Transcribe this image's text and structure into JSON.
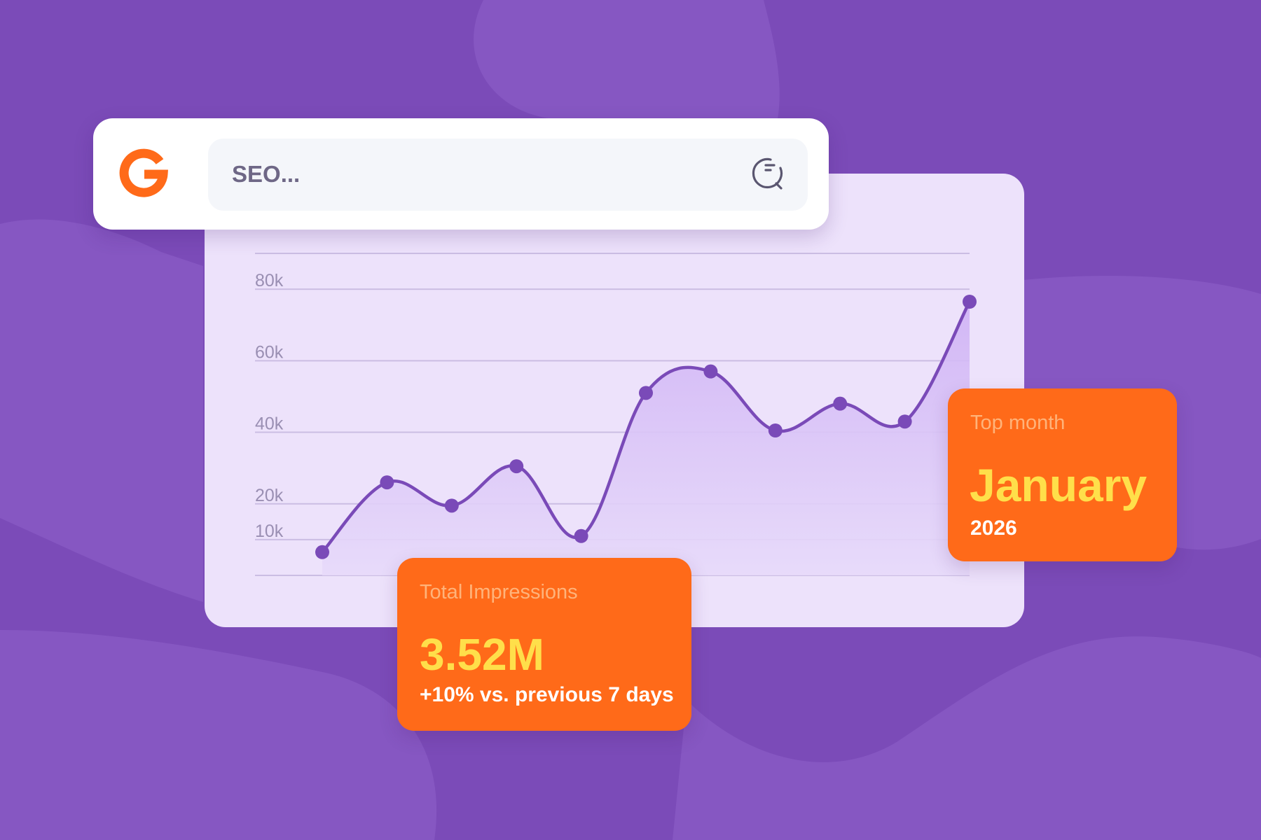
{
  "theme": {
    "background": "#7b4bb8",
    "card_background": "#ede2fb",
    "line_color": "#7a4ab8",
    "accent_orange": "#ff6a19",
    "value_yellow": "#ffdf4a",
    "logo_color": "#ff6a19"
  },
  "logo": {
    "icon": "g-logo-icon"
  },
  "search": {
    "value": "SEO...",
    "button_icon": "search-loading-icon"
  },
  "chart_data": {
    "type": "area",
    "title": "",
    "xlabel": "",
    "ylabel": "",
    "ylim": [
      0,
      90000
    ],
    "y_ticks": [
      10000,
      20000,
      40000,
      60000,
      80000
    ],
    "y_tick_labels": [
      "10k",
      "20k",
      "40k",
      "60k",
      "80k"
    ],
    "grid": true,
    "x": [
      0,
      1,
      2,
      3,
      4,
      5,
      6,
      7,
      8,
      9,
      10
    ],
    "values": [
      6500,
      26000,
      19500,
      30500,
      11000,
      51000,
      57000,
      40500,
      48000,
      43000,
      76500
    ]
  },
  "top_month": {
    "label": "Top month",
    "value": "January",
    "year": "2026"
  },
  "impressions": {
    "label": "Total Impressions",
    "value": "3.52M",
    "change": "+10% vs. previous 7 days"
  }
}
